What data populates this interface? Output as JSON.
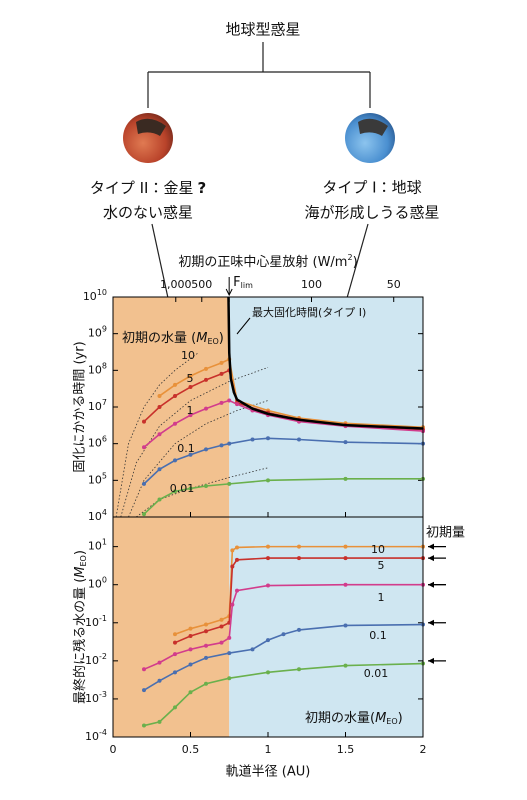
{
  "diagram": {
    "title": "地球型惑星",
    "left": {
      "label": "タイプ II：金星",
      "mark": "?",
      "desc": "水のない惑星"
    },
    "right": {
      "label": "タイプ I：地球",
      "desc": "海が形成しうる惑星"
    }
  },
  "chart_data": [
    {
      "type": "line",
      "x2label": "初期の正味中心星放射 (W/m",
      "x2label_sup": "2",
      "x2label_end": ")",
      "x2scale": "inverse-square",
      "x2lim": [
        null,
        41
      ],
      "x2ticks": [
        {
          "value": 1000,
          "label": "1,000"
        },
        500,
        {
          "value": 292,
          "label": "F",
          "sub": "lim"
        },
        100,
        50
      ],
      "ylabel": "固化にかかる時間 (yr)",
      "yscale": "log",
      "ylim": [
        10000,
        10000000000
      ],
      "yticks": [
        {
          "value": 10000,
          "label": "10",
          "sup": "4"
        },
        {
          "value": 100000,
          "label": "10",
          "sup": "5"
        },
        {
          "value": 1000000,
          "label": "10",
          "sup": "6"
        },
        {
          "value": 10000000,
          "label": "10",
          "sup": "7"
        },
        {
          "value": 100000000,
          "label": "10",
          "sup": "8"
        },
        {
          "value": 1000000000,
          "label": "10",
          "sup": "9"
        },
        {
          "value": 10000000000,
          "label": "10",
          "sup": "10"
        }
      ],
      "xlim": [
        0,
        2
      ],
      "xticks": [
        0,
        0.5,
        1,
        1.5,
        2
      ],
      "regions": [
        {
          "x": [
            0,
            0.75
          ],
          "color": "#f2c18f"
        },
        {
          "x": [
            0.75,
            2
          ],
          "color": "#cfe6f1"
        }
      ],
      "annotation": {
        "text": "初期の水量 (",
        "sym": "M",
        "sub": "EO",
        "end": ")"
      },
      "guides": [
        {
          "x": [
            0.02,
            0.1,
            0.2,
            0.3,
            0.4,
            0.55
          ],
          "values": [
            10000,
            1000000,
            10000000,
            40000000,
            100000000,
            300000000
          ]
        },
        {
          "x": [
            0.05,
            0.15,
            0.3,
            0.5,
            0.75,
            1.0
          ],
          "values": [
            10000,
            300000,
            3000000,
            15000000,
            50000000,
            120000000
          ]
        },
        {
          "x": [
            0.1,
            0.2,
            0.4,
            0.6,
            0.8,
            1.0
          ],
          "values": [
            10000,
            100000,
            1000000,
            3500000,
            8000000,
            15000000
          ]
        },
        {
          "x": [
            0.15,
            0.3,
            0.5,
            0.75,
            1.0
          ],
          "values": [
            10000,
            30000,
            60000,
            120000,
            220000
          ]
        }
      ],
      "series": [
        {
          "name": "10",
          "color": "#e8913a",
          "x": [
            0.3,
            0.4,
            0.5,
            0.6,
            0.7,
            0.75,
            0.8,
            1.0,
            1.2,
            1.5,
            2.0
          ],
          "values": [
            20000000,
            40000000,
            70000000,
            110000000,
            160000000,
            200000000,
            15000000,
            8000000,
            5000000,
            3600000,
            2800000
          ]
        },
        {
          "name": "5",
          "color": "#c8312b",
          "x": [
            0.2,
            0.3,
            0.4,
            0.5,
            0.6,
            0.7,
            0.75,
            0.8,
            1.0,
            1.2,
            1.5,
            2.0
          ],
          "values": [
            4000000,
            10000000,
            20000000,
            35000000,
            55000000,
            80000000,
            100000000,
            13000000,
            7000000,
            4500000,
            3200000,
            2400000
          ]
        },
        {
          "name": "1",
          "color": "#d23c8c",
          "x": [
            0.2,
            0.3,
            0.4,
            0.5,
            0.6,
            0.7,
            0.75,
            0.8,
            0.9,
            1.0,
            1.2,
            1.5,
            2.0
          ],
          "values": [
            800000,
            1800000,
            3500000,
            6000000,
            9000000,
            13000000,
            15000000,
            12000000,
            8000000,
            6000000,
            4000000,
            3000000,
            2200000
          ]
        },
        {
          "name": "0.1",
          "color": "#4a6fb0",
          "x": [
            0.2,
            0.3,
            0.4,
            0.5,
            0.6,
            0.7,
            0.75,
            0.9,
            1.0,
            1.2,
            1.5,
            2.0
          ],
          "values": [
            80000,
            200000,
            350000,
            500000,
            700000,
            900000,
            1000000,
            1300000,
            1400000,
            1300000,
            1100000,
            1000000
          ]
        },
        {
          "name": "0.01",
          "color": "#6ab04c",
          "x": [
            0.2,
            0.3,
            0.4,
            0.5,
            0.6,
            0.75,
            1.0,
            1.5,
            2.0
          ],
          "values": [
            12000,
            30000,
            50000,
            60000,
            70000,
            80000,
            100000,
            110000,
            110000
          ]
        },
        {
          "name": "最大固化時間(タイプ I)",
          "color": "#000000",
          "x": [
            0.745,
            0.75,
            0.76,
            0.78,
            0.8,
            0.9,
            1.0,
            1.2,
            1.5,
            2.0
          ],
          "values": [
            10000000000,
            300000000,
            60000000,
            25000000,
            16000000,
            9000000,
            6500000,
            4500000,
            3200000,
            2600000
          ]
        }
      ]
    },
    {
      "type": "line",
      "xlabel": "軌道半径 (AU)",
      "xlim": [
        0,
        2
      ],
      "xticks": [
        0,
        0.5,
        1,
        1.5,
        2
      ],
      "ylabel": "最終的に残る水の量 (",
      "ylabel_sym": "M",
      "ylabel_sub": "EO",
      "ylabel_end": ")",
      "yscale": "log",
      "ylim": [
        0.0001,
        60
      ],
      "yticks": [
        {
          "value": 0.0001,
          "label": "10",
          "sup": "-4"
        },
        {
          "value": 0.001,
          "label": "10",
          "sup": "-3"
        },
        {
          "value": 0.01,
          "label": "10",
          "sup": "-2"
        },
        {
          "value": 0.1,
          "label": "10",
          "sup": "-1"
        },
        {
          "value": 1,
          "label": "10",
          "sup": "0"
        },
        {
          "value": 10,
          "label": "10",
          "sup": "1"
        }
      ],
      "regions": [
        {
          "x": [
            0,
            0.75
          ],
          "color": "#f2c18f"
        },
        {
          "x": [
            0.75,
            2
          ],
          "color": "#cfe6f1"
        }
      ],
      "annotation": {
        "text": "初期の水量(",
        "sym": "M",
        "sub": "EO",
        "end": ")"
      },
      "initial_label": "初期量",
      "initial": [
        10,
        5,
        1,
        0.1,
        0.01
      ],
      "series": [
        {
          "name": "10",
          "color": "#e8913a",
          "x": [
            0.4,
            0.5,
            0.6,
            0.7,
            0.75,
            0.77,
            0.8,
            1.0,
            1.2,
            1.5,
            2.0
          ],
          "values": [
            0.05,
            0.07,
            0.09,
            0.12,
            0.15,
            8,
            9.5,
            10,
            10,
            10,
            10
          ]
        },
        {
          "name": "5",
          "color": "#c8312b",
          "x": [
            0.4,
            0.5,
            0.6,
            0.7,
            0.75,
            0.77,
            0.8,
            1.0,
            1.2,
            1.5,
            2.0
          ],
          "values": [
            0.03,
            0.045,
            0.06,
            0.08,
            0.1,
            3,
            4.5,
            5,
            5,
            5,
            5
          ]
        },
        {
          "name": "1",
          "color": "#d23c8c",
          "x": [
            0.2,
            0.3,
            0.4,
            0.5,
            0.6,
            0.7,
            0.75,
            0.77,
            0.8,
            1.0,
            1.5,
            2.0
          ],
          "values": [
            0.006,
            0.009,
            0.015,
            0.02,
            0.025,
            0.03,
            0.04,
            0.3,
            0.7,
            0.95,
            1.0,
            1.0
          ]
        },
        {
          "name": "0.1",
          "color": "#4a6fb0",
          "x": [
            0.2,
            0.3,
            0.4,
            0.5,
            0.6,
            0.75,
            0.9,
            1.0,
            1.1,
            1.2,
            1.5,
            2.0
          ],
          "values": [
            0.0017,
            0.003,
            0.005,
            0.008,
            0.012,
            0.016,
            0.02,
            0.035,
            0.05,
            0.065,
            0.085,
            0.09
          ]
        },
        {
          "name": "0.01",
          "color": "#6ab04c",
          "x": [
            0.2,
            0.3,
            0.4,
            0.5,
            0.6,
            0.75,
            1.0,
            1.2,
            1.5,
            2.0
          ],
          "values": [
            0.0002,
            0.00025,
            0.0006,
            0.0015,
            0.0025,
            0.0035,
            0.005,
            0.006,
            0.0075,
            0.0085
          ]
        }
      ]
    }
  ]
}
